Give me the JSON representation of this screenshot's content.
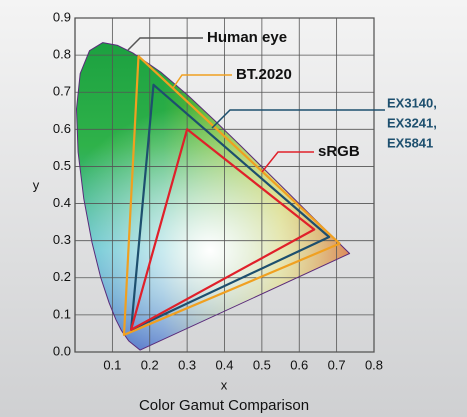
{
  "chart_data": {
    "type": "line",
    "title": "Color Gamut Comparison",
    "x_label": "x",
    "y_label": "y",
    "xlim": [
      0,
      0.8
    ],
    "ylim": [
      0,
      0.9
    ],
    "xticks": [
      0.1,
      0.2,
      0.3,
      0.4,
      0.5,
      0.6,
      0.7,
      0.8
    ],
    "yticks": [
      {
        "value": 0,
        "label": "0.0"
      },
      0.1,
      0.2,
      0.3,
      0.4,
      0.5,
      0.6,
      0.7,
      0.8,
      0.9
    ],
    "grid": true,
    "closed": true,
    "series": [
      {
        "name": "Human eye",
        "color": "#5a2a7a",
        "fill": true,
        "x": [
          0.1741,
          0.144,
          0.1241,
          0.1096,
          0.0913,
          0.0687,
          0.0454,
          0.0235,
          0.0082,
          0.0039,
          0.0139,
          0.0389,
          0.0743,
          0.1142,
          0.1547,
          0.2296,
          0.3016,
          0.3731,
          0.4441,
          0.5125,
          0.5752,
          0.627,
          0.6915,
          0.7347
        ],
        "y": [
          0.005,
          0.0297,
          0.0578,
          0.0868,
          0.1327,
          0.2007,
          0.295,
          0.4127,
          0.5384,
          0.6548,
          0.7502,
          0.812,
          0.8338,
          0.8262,
          0.8059,
          0.7543,
          0.6923,
          0.6245,
          0.5547,
          0.4866,
          0.4242,
          0.3725,
          0.3083,
          0.2653
        ]
      },
      {
        "name": "BT.2020",
        "color": "#f0a020",
        "x": [
          0.708,
          0.17,
          0.131
        ],
        "y": [
          0.292,
          0.797,
          0.046
        ]
      },
      {
        "name": [
          "EX3140,",
          "EX3241,",
          "EX5841"
        ],
        "color": "#1d4f6e",
        "x": [
          0.68,
          0.21,
          0.15
        ],
        "y": [
          0.31,
          0.72,
          0.06
        ]
      },
      {
        "name": "sRGB",
        "color": "#e0202a",
        "x": [
          0.64,
          0.3,
          0.15
        ],
        "y": [
          0.33,
          0.6,
          0.06
        ]
      }
    ]
  }
}
